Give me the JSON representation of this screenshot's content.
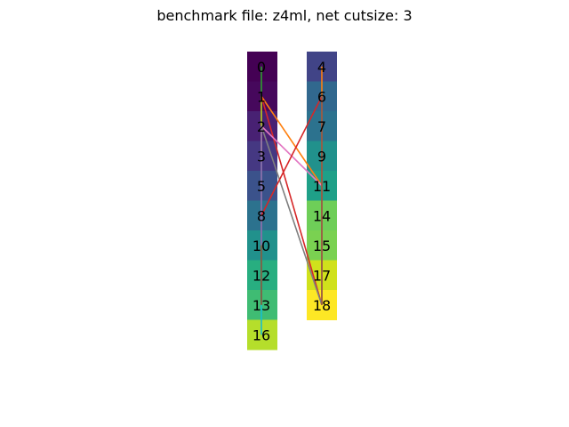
{
  "title": "benchmark file: z4ml, net cutsize: 3",
  "columns": [
    {
      "id": "left",
      "cells": [
        {
          "label": "0",
          "color": "#440154"
        },
        {
          "label": "1",
          "color": "#46085c"
        },
        {
          "label": "2",
          "color": "#482173"
        },
        {
          "label": "3",
          "color": "#453882"
        },
        {
          "label": "5",
          "color": "#3b528b"
        },
        {
          "label": "8",
          "color": "#2c728e"
        },
        {
          "label": "10",
          "color": "#21918c"
        },
        {
          "label": "12",
          "color": "#28ae80"
        },
        {
          "label": "13",
          "color": "#3fbc73"
        },
        {
          "label": "16",
          "color": "#b5de2b"
        }
      ]
    },
    {
      "id": "right",
      "cells": [
        {
          "label": "4",
          "color": "#414487"
        },
        {
          "label": "6",
          "color": "#31688e"
        },
        {
          "label": "7",
          "color": "#2c728e"
        },
        {
          "label": "9",
          "color": "#21918c"
        },
        {
          "label": "11",
          "color": "#1fa088"
        },
        {
          "label": "14",
          "color": "#6ece58"
        },
        {
          "label": "15",
          "color": "#7ad151"
        },
        {
          "label": "17",
          "color": "#d0e11c"
        },
        {
          "label": "18",
          "color": "#fde725"
        }
      ]
    }
  ],
  "edges": [
    {
      "from": "0",
      "to": "13",
      "color": "#2ca02c"
    },
    {
      "from": "13",
      "to": "16",
      "color": "#17becf"
    },
    {
      "from": "1",
      "to": "3",
      "color": "#bcbd22"
    },
    {
      "from": "2",
      "to": "10",
      "color": "#9467bd"
    },
    {
      "from": "10",
      "to": "13",
      "color": "#8c564b"
    },
    {
      "from": "1",
      "to": "11",
      "color": "#ff7f0e"
    },
    {
      "from": "1",
      "to": "18",
      "color": "#d62728"
    },
    {
      "from": "2",
      "to": "11",
      "color": "#e377c2"
    },
    {
      "from": "2",
      "to": "18",
      "color": "#7f7f7f"
    },
    {
      "from": "8",
      "to": "6",
      "color": "#d62728"
    },
    {
      "from": "4",
      "to": "18",
      "color": "#ff7f0e"
    },
    {
      "from": "6",
      "to": "18",
      "color": "#8c564b"
    }
  ]
}
